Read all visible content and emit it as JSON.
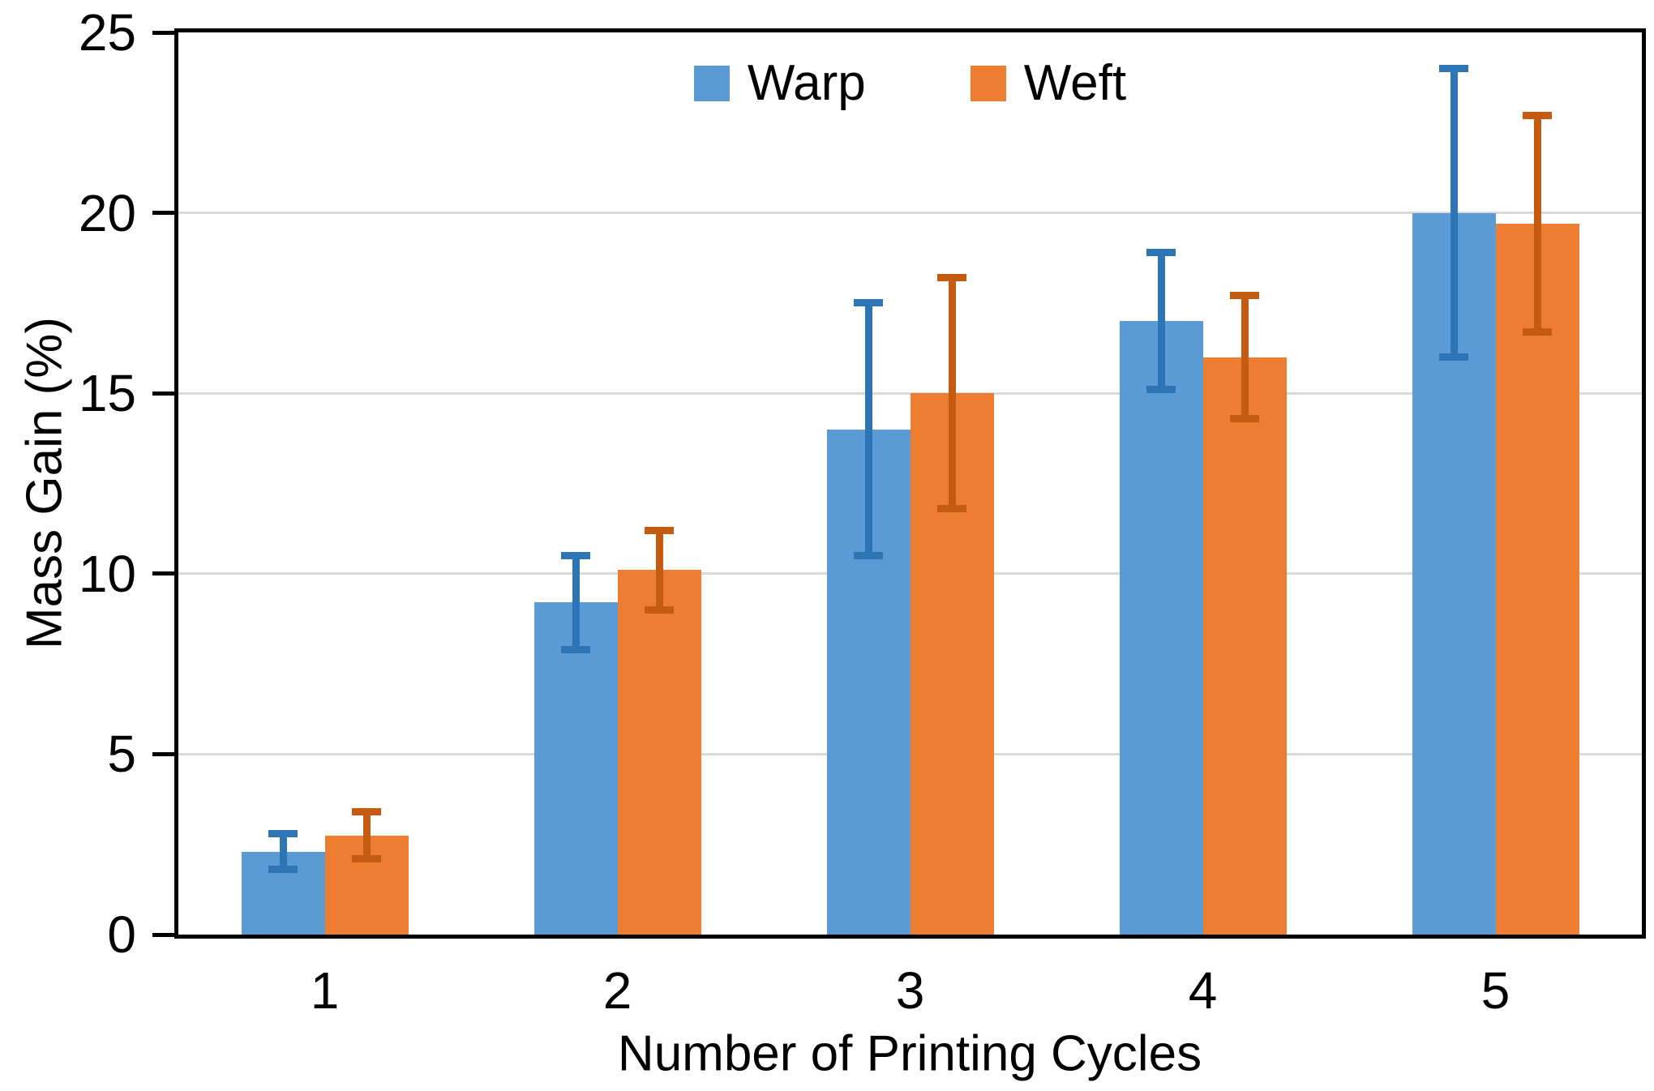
{
  "figure": {
    "background": "#ffffff",
    "axis_color": "#000000",
    "gridline_color": "#dadada",
    "text_color": "#000000"
  },
  "chart_data": {
    "type": "bar",
    "title": "",
    "xlabel": "Number of Printing Cycles",
    "ylabel": "Mass Gain (%)",
    "categories": [
      "1",
      "2",
      "3",
      "4",
      "5"
    ],
    "series": [
      {
        "name": "Warp",
        "color": "#5B9BD5",
        "error_color": "#2E75B6",
        "values": [
          2.3,
          9.2,
          14.0,
          17.0,
          20.0
        ],
        "errors": [
          0.5,
          1.3,
          3.5,
          1.9,
          4.0
        ]
      },
      {
        "name": "Weft",
        "color": "#ED7D31",
        "error_color": "#C55A11",
        "values": [
          2.75,
          10.1,
          15.0,
          16.0,
          19.7
        ],
        "errors": [
          0.65,
          1.1,
          3.2,
          1.7,
          3.0
        ]
      }
    ],
    "ylim": [
      0,
      25
    ],
    "ytick_step": 5,
    "yticks": [
      "0",
      "5",
      "10",
      "15",
      "20",
      "25"
    ],
    "grid": "horizontal",
    "legend_position": "top-center",
    "legend_entries": [
      "Warp",
      "Weft"
    ],
    "error_bars": "symmetric-both-directions"
  }
}
